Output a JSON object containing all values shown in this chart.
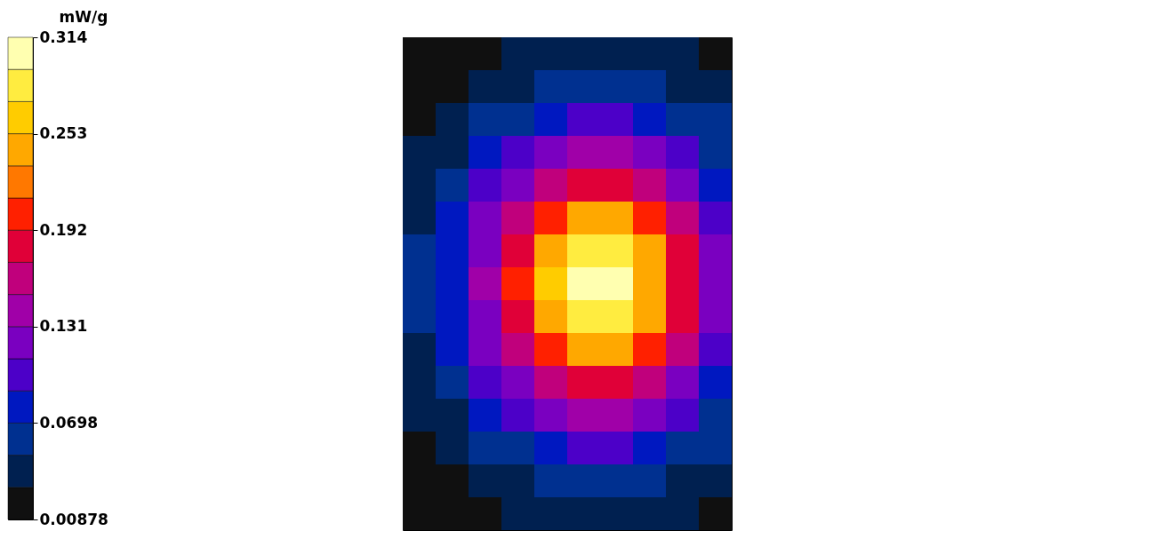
{
  "chart_data": {
    "type": "heatmap",
    "clabel": "mW/g",
    "categories": [
      null,
      null,
      null,
      null,
      null,
      null,
      null,
      null,
      null,
      null
    ],
    "y_categories": [
      null,
      null,
      null,
      null,
      null,
      null,
      null,
      null,
      null,
      null,
      null,
      null,
      null,
      null,
      null
    ],
    "cells": [
      [
        0.012,
        0.015,
        0.024,
        0.031,
        0.037,
        0.04,
        0.04,
        0.037,
        0.031,
        0.023
      ],
      [
        0.016,
        0.025,
        0.031,
        0.046,
        0.056,
        0.06,
        0.06,
        0.055,
        0.045,
        0.034
      ],
      [
        0.021,
        0.037,
        0.051,
        0.068,
        0.084,
        0.093,
        0.093,
        0.084,
        0.067,
        0.051
      ],
      [
        0.032,
        0.047,
        0.071,
        0.097,
        0.119,
        0.134,
        0.133,
        0.12,
        0.096,
        0.068
      ],
      [
        0.039,
        0.06,
        0.093,
        0.128,
        0.167,
        0.188,
        0.186,
        0.163,
        0.125,
        0.087
      ],
      [
        0.046,
        0.072,
        0.111,
        0.162,
        0.208,
        0.238,
        0.236,
        0.205,
        0.156,
        0.11
      ],
      [
        0.051,
        0.082,
        0.127,
        0.187,
        0.243,
        0.285,
        0.283,
        0.238,
        0.182,
        0.123
      ],
      [
        0.052,
        0.085,
        0.133,
        0.195,
        0.258,
        0.3,
        0.3,
        0.25,
        0.19,
        0.13
      ],
      [
        0.051,
        0.082,
        0.127,
        0.187,
        0.243,
        0.285,
        0.283,
        0.238,
        0.182,
        0.123
      ],
      [
        0.046,
        0.072,
        0.111,
        0.162,
        0.208,
        0.238,
        0.236,
        0.205,
        0.156,
        0.11
      ],
      [
        0.039,
        0.06,
        0.093,
        0.128,
        0.167,
        0.188,
        0.186,
        0.163,
        0.125,
        0.087
      ],
      [
        0.032,
        0.047,
        0.071,
        0.097,
        0.119,
        0.134,
        0.133,
        0.12,
        0.096,
        0.068
      ],
      [
        0.021,
        0.037,
        0.051,
        0.068,
        0.084,
        0.093,
        0.093,
        0.084,
        0.067,
        0.051
      ],
      [
        0.016,
        0.025,
        0.031,
        0.046,
        0.056,
        0.06,
        0.06,
        0.055,
        0.045,
        0.034
      ],
      [
        0.012,
        0.015,
        0.024,
        0.031,
        0.037,
        0.04,
        0.04,
        0.037,
        0.031,
        0.023
      ]
    ],
    "clim": [
      0.00878,
      0.314
    ],
    "cticks": [
      0.00878,
      0.0698,
      0.131,
      0.192,
      0.253,
      0.314
    ],
    "tick_labels": false
  }
}
